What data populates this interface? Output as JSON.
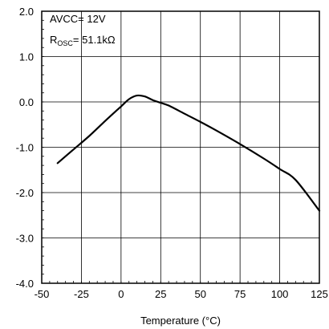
{
  "chart_data": {
    "type": "line",
    "title": "",
    "xlabel": "Temperature (°C)",
    "ylabel": "",
    "xlim": [
      -50,
      125
    ],
    "ylim": [
      -4.0,
      2.0
    ],
    "x_ticks": [
      -50,
      -25,
      0,
      25,
      50,
      75,
      100,
      125
    ],
    "x_tick_labels": [
      "-50",
      "-25",
      "0",
      "25",
      "50",
      "75",
      "100",
      "125"
    ],
    "y_ticks": [
      2.0,
      1.0,
      0.0,
      -1.0,
      -2.0,
      -3.0,
      -4.0
    ],
    "y_tick_labels": [
      "2.0",
      "1.0",
      "0.0",
      "-1.0",
      "-2.0",
      "-3.0",
      "-4.0"
    ],
    "grid": true,
    "series": [
      {
        "x": [
          -40,
          -30,
          -20,
          -10,
          0,
          5,
          10,
          15,
          20,
          25,
          30,
          40,
          50,
          60,
          75,
          90,
          100,
          110,
          125
        ],
        "y": [
          -1.35,
          -1.05,
          -0.75,
          -0.42,
          -0.1,
          0.06,
          0.14,
          0.12,
          0.04,
          -0.02,
          -0.08,
          -0.26,
          -0.44,
          -0.63,
          -0.93,
          -1.25,
          -1.48,
          -1.72,
          -2.4
        ],
        "color": "#000000"
      }
    ],
    "annotations": {
      "line1": "AVCC= 12V",
      "line2_main": "R",
      "line2_sub": "OSC",
      "line2_rest": "= 51.1kΩ"
    }
  }
}
